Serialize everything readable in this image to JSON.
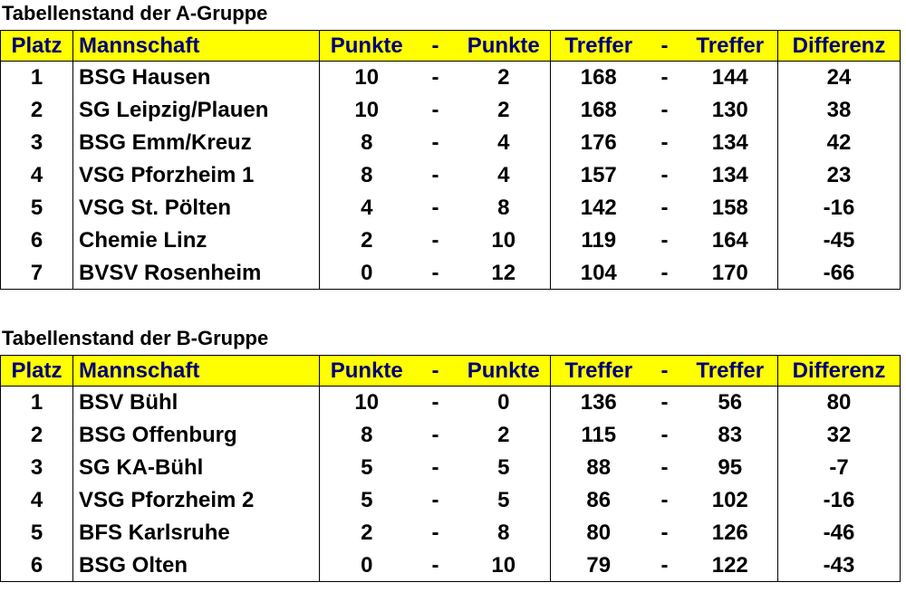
{
  "group_a": {
    "title": "Tabellenstand der A-Gruppe",
    "headers": [
      "Platz",
      "Mannschaft",
      "Punkte",
      "-",
      "Punkte",
      "Treffer",
      "-",
      "Treffer",
      "Differenz"
    ],
    "rows": [
      [
        "1",
        "BSG Hausen",
        "10",
        "-",
        "2",
        "168",
        "-",
        "144",
        "24"
      ],
      [
        "2",
        "SG Leipzig/Plauen",
        "10",
        "-",
        "2",
        "168",
        "-",
        "130",
        "38"
      ],
      [
        "3",
        "BSG Emm/Kreuz",
        "8",
        "-",
        "4",
        "176",
        "-",
        "134",
        "42"
      ],
      [
        "4",
        "VSG Pforzheim 1",
        "8",
        "-",
        "4",
        "157",
        "-",
        "134",
        "23"
      ],
      [
        "5",
        "VSG St. Pölten",
        "4",
        "-",
        "8",
        "142",
        "-",
        "158",
        "-16"
      ],
      [
        "6",
        "Chemie Linz",
        "2",
        "-",
        "10",
        "119",
        "-",
        "164",
        "-45"
      ],
      [
        "7",
        "BVSV Rosenheim",
        "0",
        "-",
        "12",
        "104",
        "-",
        "170",
        "-66"
      ]
    ]
  },
  "group_b": {
    "title": "Tabellenstand der B-Gruppe",
    "headers": [
      "Platz",
      "Mannschaft",
      "Punkte",
      "-",
      "Punkte",
      "Treffer",
      "-",
      "Treffer",
      "Differenz"
    ],
    "rows": [
      [
        "1",
        "BSV Bühl",
        "10",
        "-",
        "0",
        "136",
        "-",
        "56",
        "80"
      ],
      [
        "2",
        "BSG Offenburg",
        "8",
        "-",
        "2",
        "115",
        "-",
        "83",
        "32"
      ],
      [
        "3",
        "SG KA-Bühl",
        "5",
        "-",
        "5",
        "88",
        "-",
        "95",
        "-7"
      ],
      [
        "4",
        "VSG Pforzheim 2",
        "5",
        "-",
        "5",
        "86",
        "-",
        "102",
        "-16"
      ],
      [
        "5",
        "BFS Karlsruhe",
        "2",
        "-",
        "8",
        "80",
        "-",
        "126",
        "-46"
      ],
      [
        "6",
        "BSG Olten",
        "0",
        "-",
        "10",
        "79",
        "-",
        "122",
        "-43"
      ]
    ]
  },
  "colors": {
    "header_bg": "#ffff00",
    "header_text": "#00007a",
    "text": "#000000"
  }
}
